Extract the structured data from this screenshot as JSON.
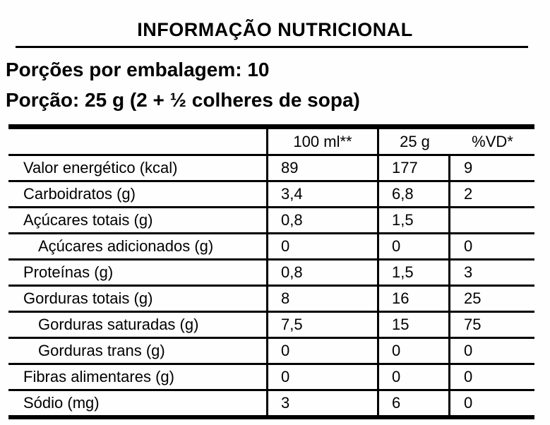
{
  "header": {
    "title": "INFORMAÇÃO NUTRICIONAL",
    "servings_line": "Porções por embalagem: 10",
    "portion_line": "Porção: 25 g (2 + ½ colheres de sopa)"
  },
  "table": {
    "columns": [
      "",
      "100 ml**",
      "25 g",
      "%VD*"
    ],
    "rows": [
      {
        "label": "Valor energético (kcal)",
        "indent": false,
        "per_100ml": "89",
        "per_25g": "177",
        "vd_percent": "9"
      },
      {
        "label": "Carboidratos (g)",
        "indent": false,
        "per_100ml": "3,4",
        "per_25g": "6,8",
        "vd_percent": "2"
      },
      {
        "label": "Açúcares totais (g)",
        "indent": false,
        "per_100ml": "0,8",
        "per_25g": "1,5",
        "vd_percent": ""
      },
      {
        "label": "Açúcares adicionados (g)",
        "indent": true,
        "per_100ml": "0",
        "per_25g": "0",
        "vd_percent": "0"
      },
      {
        "label": "Proteínas (g)",
        "indent": false,
        "per_100ml": "0,8",
        "per_25g": "1,5",
        "vd_percent": "3"
      },
      {
        "label": "Gorduras totais (g)",
        "indent": false,
        "per_100ml": "8",
        "per_25g": "16",
        "vd_percent": "25"
      },
      {
        "label": "Gorduras saturadas (g)",
        "indent": true,
        "per_100ml": "7,5",
        "per_25g": "15",
        "vd_percent": "75"
      },
      {
        "label": "Gorduras trans (g)",
        "indent": true,
        "per_100ml": "0",
        "per_25g": "0",
        "vd_percent": "0"
      },
      {
        "label": "Fibras alimentares (g)",
        "indent": false,
        "per_100ml": "0",
        "per_25g": "0",
        "vd_percent": "0"
      },
      {
        "label": "Sódio (mg)",
        "indent": false,
        "per_100ml": "3",
        "per_25g": "6",
        "vd_percent": "0"
      }
    ]
  }
}
